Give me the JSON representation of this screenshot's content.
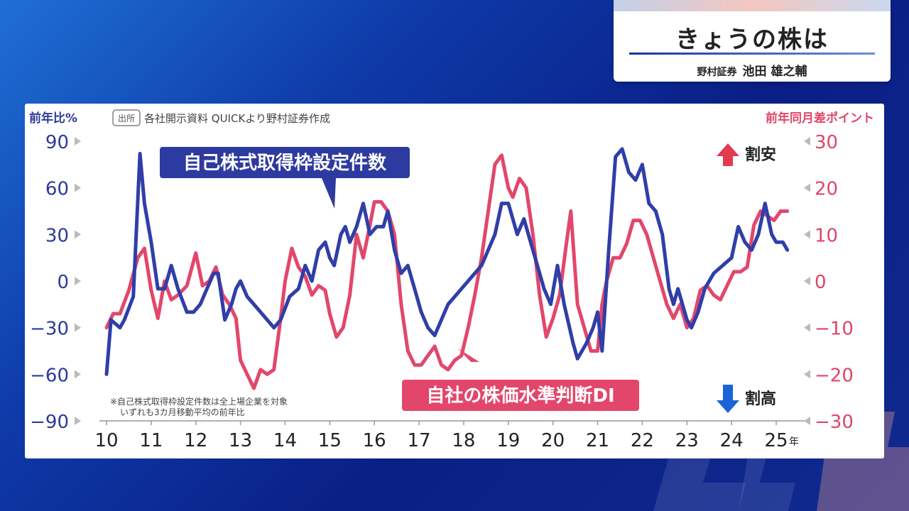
{
  "header": {
    "title": "きょうの株は",
    "org": "野村証券",
    "person": "池田 雄之輔"
  },
  "source": {
    "badge": "出所",
    "text": "各社開示資料 QUICKより野村証券作成"
  },
  "notes": [
    "※自己株式取得枠設定件数は全上場企業を対象",
    "いずれも3カ月移動平均の前年比"
  ],
  "labels": {
    "arrow_up": "割安",
    "arrow_down": "割高",
    "x_unit": "年"
  },
  "colors": {
    "blue": "#2f3ea8",
    "red": "#e2476b",
    "axis_blue": "#2d3a9c",
    "axis_red": "#e0456a",
    "arrow_up": "#e23a4e",
    "arrow_down": "#1b63d6"
  },
  "chart_data": {
    "type": "line",
    "x_unit": "年",
    "x_ticks": [
      "10",
      "11",
      "12",
      "13",
      "14",
      "15",
      "16",
      "17",
      "18",
      "19",
      "20",
      "21",
      "22",
      "23",
      "24",
      "25"
    ],
    "left_axis": {
      "title": "前年比%",
      "ticks": [
        90,
        60,
        30,
        0,
        -30,
        -60,
        -90
      ],
      "tick_labels": [
        "90",
        "60",
        "30",
        "0",
        "−30",
        "−60",
        "−90"
      ],
      "range": [
        -90,
        90
      ]
    },
    "right_axis": {
      "title": "前年同月差ポイント",
      "ticks": [
        30,
        20,
        10,
        0,
        -10,
        -20,
        -30
      ],
      "tick_labels": [
        "30",
        "20",
        "10",
        "0",
        "−10",
        "−20",
        "−30"
      ],
      "range": [
        -30,
        30
      ]
    },
    "series": [
      {
        "name": "自己株式取得枠設定件数",
        "axis": "left",
        "x": [
          2010.0,
          2010.1,
          2010.3,
          2010.4,
          2010.6,
          2010.75,
          2010.85,
          2011.0,
          2011.15,
          2011.3,
          2011.45,
          2011.6,
          2011.8,
          2011.95,
          2012.1,
          2012.25,
          2012.4,
          2012.5,
          2012.65,
          2012.8,
          2012.9,
          2013.0,
          2013.15,
          2013.3,
          2013.45,
          2013.6,
          2013.75,
          2013.9,
          2014.1,
          2014.3,
          2014.45,
          2014.6,
          2014.75,
          2014.9,
          2015.0,
          2015.1,
          2015.25,
          2015.35,
          2015.45,
          2015.6,
          2015.75,
          2015.9,
          2016.05,
          2016.2,
          2016.3,
          2016.45,
          2016.6,
          2016.75,
          2016.9,
          2017.05,
          2017.2,
          2017.35,
          2017.5,
          2017.65,
          2017.8,
          2017.95,
          2018.1,
          2018.25,
          2018.4,
          2018.55,
          2018.7,
          2018.85,
          2019.0,
          2019.1,
          2019.2,
          2019.35,
          2019.5,
          2019.65,
          2019.8,
          2019.95,
          2020.1,
          2020.25,
          2020.45,
          2020.55,
          2020.75,
          2020.9,
          2021.0,
          2021.1,
          2021.25,
          2021.4,
          2021.55,
          2021.7,
          2021.85,
          2022.0,
          2022.15,
          2022.3,
          2022.45,
          2022.6,
          2022.7,
          2022.8,
          2022.9,
          2023.0,
          2023.1,
          2023.25,
          2023.4,
          2023.6,
          2023.8,
          2024.0,
          2024.15,
          2024.3,
          2024.45,
          2024.6,
          2024.75,
          2024.9,
          2025.0,
          2025.15,
          2025.25
        ],
        "values": [
          -60,
          -25,
          -30,
          -25,
          -10,
          82,
          50,
          25,
          -5,
          -5,
          10,
          -5,
          -20,
          -20,
          -15,
          -5,
          5,
          5,
          -25,
          -15,
          -5,
          0,
          -10,
          -15,
          -20,
          -25,
          -30,
          -25,
          -10,
          -5,
          10,
          0,
          20,
          25,
          15,
          10,
          30,
          35,
          25,
          35,
          50,
          30,
          35,
          35,
          45,
          20,
          5,
          10,
          -5,
          -20,
          -30,
          -35,
          -25,
          -15,
          -10,
          -5,
          0,
          5,
          10,
          20,
          30,
          50,
          50,
          40,
          30,
          40,
          25,
          10,
          -5,
          -15,
          10,
          -15,
          -40,
          -50,
          -40,
          -30,
          -20,
          -45,
          20,
          80,
          85,
          70,
          65,
          75,
          50,
          45,
          30,
          -5,
          -15,
          -5,
          -15,
          -25,
          -30,
          -20,
          -5,
          5,
          10,
          15,
          35,
          25,
          20,
          30,
          50,
          30,
          25,
          25,
          20
        ]
      },
      {
        "name": "自社の株価水準判断DI",
        "axis": "right",
        "x": [
          2010.0,
          2010.15,
          2010.3,
          2010.5,
          2010.7,
          2010.85,
          2011.0,
          2011.15,
          2011.3,
          2011.45,
          2011.6,
          2011.8,
          2012.0,
          2012.15,
          2012.3,
          2012.45,
          2012.6,
          2012.75,
          2012.9,
          2013.0,
          2013.15,
          2013.3,
          2013.45,
          2013.6,
          2013.75,
          2013.9,
          2014.0,
          2014.15,
          2014.3,
          2014.45,
          2014.6,
          2014.75,
          2014.9,
          2015.0,
          2015.15,
          2015.3,
          2015.45,
          2015.6,
          2015.75,
          2015.9,
          2016.0,
          2016.15,
          2016.3,
          2016.45,
          2016.6,
          2016.75,
          2016.9,
          2017.05,
          2017.2,
          2017.35,
          2017.5,
          2017.65,
          2017.8,
          2017.95,
          2018.1,
          2018.25,
          2018.4,
          2018.55,
          2018.7,
          2018.85,
          2019.0,
          2019.1,
          2019.25,
          2019.4,
          2019.55,
          2019.7,
          2019.85,
          2020.0,
          2020.15,
          2020.3,
          2020.4,
          2020.55,
          2020.7,
          2020.85,
          2021.0,
          2021.1,
          2021.2,
          2021.35,
          2021.5,
          2021.65,
          2021.8,
          2021.95,
          2022.1,
          2022.25,
          2022.4,
          2022.55,
          2022.7,
          2022.85,
          2023.0,
          2023.15,
          2023.3,
          2023.45,
          2023.6,
          2023.75,
          2023.9,
          2024.05,
          2024.2,
          2024.35,
          2024.5,
          2024.65,
          2024.8,
          2024.95,
          2025.1,
          2025.25
        ],
        "values": [
          -10,
          -7,
          -7,
          -2,
          5,
          7,
          -2,
          -8,
          0,
          -4,
          -3,
          -1,
          6,
          -1,
          0,
          3,
          -3,
          -5,
          -8,
          -17,
          -20,
          -23,
          -19,
          -20,
          -19,
          -8,
          0,
          7,
          3,
          1,
          -3,
          -1,
          -2,
          -7,
          -12,
          -10,
          -3,
          10,
          5,
          12,
          17,
          17,
          15,
          10,
          -5,
          -15,
          -18,
          -18,
          -16,
          -14,
          -18,
          -19,
          -17,
          -16,
          -10,
          -3,
          5,
          15,
          25,
          27,
          20,
          18,
          22,
          20,
          10,
          -3,
          -12,
          -8,
          -3,
          8,
          15,
          -5,
          -10,
          -15,
          -15,
          -5,
          0,
          5,
          5,
          8,
          13,
          13,
          10,
          5,
          0,
          -5,
          -8,
          -5,
          -10,
          -8,
          -2,
          -1,
          -3,
          -4,
          -1,
          2,
          2,
          3,
          12,
          15,
          14,
          13,
          15,
          15
        ]
      }
    ],
    "legend_labels": [
      "自己株式取得枠設定件数",
      "自社の株価水準判断DI"
    ]
  }
}
